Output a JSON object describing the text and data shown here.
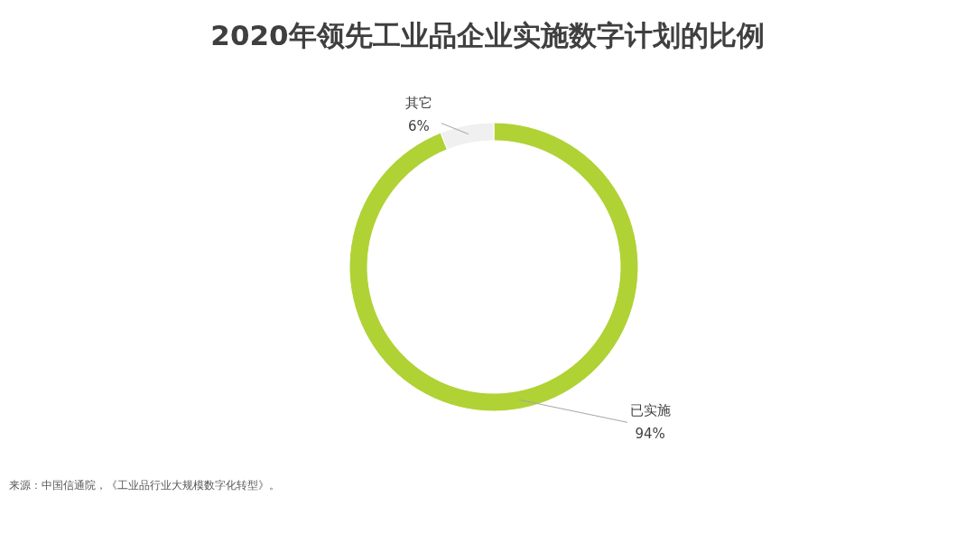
{
  "chart_data": {
    "type": "donut",
    "title": "2020年领先工业品企业实施数字计划的比例",
    "categories": [
      "已实施",
      "其它"
    ],
    "values": [
      94,
      6
    ],
    "colors": [
      "#b0d235",
      "#f0f0f0"
    ],
    "value_labels": [
      "94%",
      "6%"
    ],
    "annotations": [
      "来源：中国信通院，《工业品行业大规模数字化转型》。"
    ]
  }
}
